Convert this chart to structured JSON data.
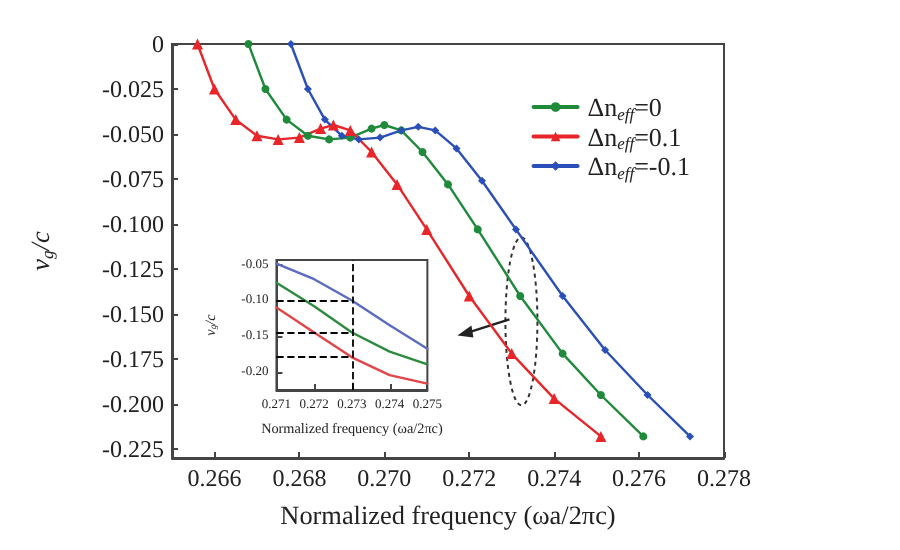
{
  "chart_data": [
    {
      "type": "line",
      "xlabel": "Normalized frequency (ωa/2πc)",
      "ylabel": "v$_{g}$/c",
      "legend": "top right",
      "xlim": [
        0.265,
        0.278
      ],
      "xticks": [
        0.266,
        0.268,
        {
          "value": 0.27,
          "label": "0.270"
        },
        0.272,
        0.274,
        0.276,
        0.278
      ],
      "ylim": [
        -0.23,
        0
      ],
      "yticks": [
        0,
        -0.025,
        {
          "value": -0.05,
          "label": "-0.050"
        },
        -0.075,
        {
          "value": -0.1,
          "label": "-0.100"
        },
        -0.125,
        {
          "value": -0.15,
          "label": "-0.150"
        },
        -0.175,
        {
          "value": -0.2,
          "label": "-0.200"
        },
        -0.225
      ],
      "series": [
        {
          "name": "Δn$_{eff}$=0",
          "color": "#1e8a3a",
          "marker": "circle",
          "x": [
            0.2668,
            0.2672,
            0.2677,
            0.2682,
            0.2687,
            0.2692,
            0.2697,
            0.27,
            0.2704,
            0.2709,
            0.2715,
            0.2722,
            0.2732,
            0.2742,
            0.2751,
            0.2761
          ],
          "values": [
            0,
            -0.025,
            -0.042,
            -0.051,
            -0.053,
            -0.052,
            -0.047,
            -0.045,
            -0.048,
            -0.06,
            -0.078,
            -0.103,
            -0.14,
            -0.172,
            -0.195,
            -0.218
          ]
        },
        {
          "name": "Δn$_{eff}$=0.1",
          "color": "#e8262a",
          "marker": "triangle",
          "x": [
            0.2656,
            0.266,
            0.2665,
            0.267,
            0.2675,
            0.268,
            0.2685,
            0.2688,
            0.2692,
            0.2697,
            0.2703,
            0.271,
            0.272,
            0.273,
            0.274,
            0.2751
          ],
          "values": [
            0,
            -0.025,
            -0.042,
            -0.051,
            -0.053,
            -0.052,
            -0.047,
            -0.045,
            -0.048,
            -0.06,
            -0.078,
            -0.103,
            -0.14,
            -0.172,
            -0.197,
            -0.218
          ]
        },
        {
          "name": "Δn$_{eff}$=-0.1",
          "color": "#2a4fb8",
          "marker": "diamond",
          "x": [
            0.2678,
            0.2682,
            0.2686,
            0.269,
            0.2694,
            0.2699,
            0.2704,
            0.2708,
            0.2712,
            0.2717,
            0.2723,
            0.2731,
            0.2742,
            0.2752,
            0.2762,
            0.2772
          ],
          "values": [
            0,
            -0.025,
            -0.042,
            -0.051,
            -0.053,
            -0.052,
            -0.048,
            -0.046,
            -0.048,
            -0.058,
            -0.076,
            -0.103,
            -0.14,
            -0.17,
            -0.195,
            -0.218
          ]
        }
      ]
    },
    {
      "type": "line",
      "xlabel": "Normalized frequency (ωa/2πc)",
      "ylabel": "v$_{g}$/c",
      "xlim": [
        0.271,
        0.275
      ],
      "xticks": [
        0.271,
        0.272,
        0.273,
        0.274,
        0.275
      ],
      "ylim": [
        -0.226,
        -0.043
      ],
      "yticks": [
        {
          "value": -0.05,
          "label": "-0.05"
        },
        {
          "value": -0.1,
          "label": "-0.10"
        },
        {
          "value": -0.15,
          "label": "-0.15"
        },
        {
          "value": -0.2,
          "label": "-0.20"
        }
      ],
      "series": [
        {
          "color": "#5b6bc0",
          "x": [
            0.271,
            0.272,
            0.273,
            0.274,
            0.275
          ],
          "values": [
            -0.048,
            -0.07,
            -0.1,
            -0.135,
            -0.168
          ]
        },
        {
          "color": "#2e8b3e",
          "x": [
            0.271,
            0.272,
            0.273,
            0.274,
            0.275
          ],
          "values": [
            -0.075,
            -0.108,
            -0.145,
            -0.172,
            -0.19
          ]
        },
        {
          "color": "#e0454a",
          "x": [
            0.271,
            0.272,
            0.273,
            0.274,
            0.275
          ],
          "values": [
            -0.11,
            -0.145,
            -0.18,
            -0.205,
            -0.217
          ]
        }
      ],
      "ref_lines": [
        {
          "axis": "x",
          "value": 0.273,
          "line_style": "dashed",
          "color": "#000000"
        },
        {
          "axis": "y",
          "value": -0.1,
          "line_style": "dashed",
          "color": "#000000"
        },
        {
          "axis": "y",
          "value": -0.145,
          "line_style": "dashed",
          "color": "#000000"
        },
        {
          "axis": "y",
          "value": -0.18,
          "line_style": "dashed",
          "color": "#000000"
        }
      ]
    }
  ]
}
